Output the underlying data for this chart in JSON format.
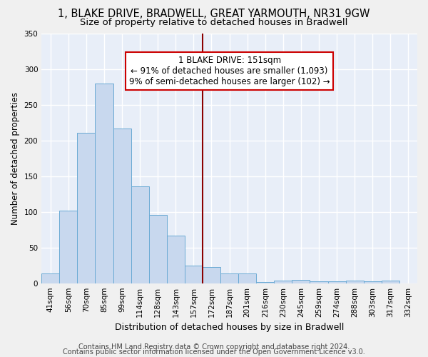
{
  "title": "1, BLAKE DRIVE, BRADWELL, GREAT YARMOUTH, NR31 9GW",
  "subtitle": "Size of property relative to detached houses in Bradwell",
  "xlabel": "Distribution of detached houses by size in Bradwell",
  "ylabel": "Number of detached properties",
  "bar_labels": [
    "41sqm",
    "56sqm",
    "70sqm",
    "85sqm",
    "99sqm",
    "114sqm",
    "128sqm",
    "143sqm",
    "157sqm",
    "172sqm",
    "187sqm",
    "201sqm",
    "216sqm",
    "230sqm",
    "245sqm",
    "259sqm",
    "274sqm",
    "288sqm",
    "303sqm",
    "317sqm",
    "332sqm"
  ],
  "bar_values": [
    14,
    102,
    211,
    280,
    217,
    136,
    96,
    67,
    25,
    23,
    14,
    14,
    2,
    4,
    5,
    3,
    3,
    4,
    3,
    4,
    0
  ],
  "bar_color": "#c8d8ee",
  "bar_edge_color": "#6aaad4",
  "background_color": "#e8eef8",
  "grid_color": "#ffffff",
  "vline_position": 8.5,
  "vline_color": "#8b0000",
  "annotation_text": "1 BLAKE DRIVE: 151sqm\n← 91% of detached houses are smaller (1,093)\n9% of semi-detached houses are larger (102) →",
  "annotation_box_facecolor": "#ffffff",
  "annotation_box_edgecolor": "#cc0000",
  "ylim": [
    0,
    350
  ],
  "yticks": [
    0,
    50,
    100,
    150,
    200,
    250,
    300,
    350
  ],
  "footer1": "Contains HM Land Registry data © Crown copyright and database right 2024.",
  "footer2": "Contains public sector information licensed under the Open Government Licence v3.0.",
  "title_fontsize": 10.5,
  "subtitle_fontsize": 9.5,
  "xlabel_fontsize": 9,
  "ylabel_fontsize": 8.5,
  "tick_fontsize": 7.5,
  "annotation_fontsize": 8.5,
  "footer_fontsize": 7
}
